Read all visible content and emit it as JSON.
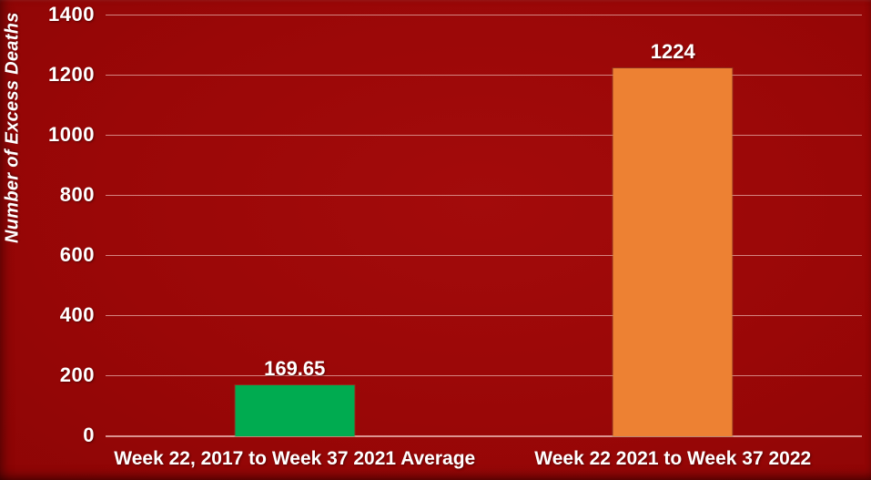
{
  "chart_data": {
    "type": "bar",
    "title": "",
    "ylabel": "Number of Excess Deaths",
    "xlabel": "",
    "categories": [
      "Week 22, 2017 to Week 37 2021 Average",
      "Week 22 2021 to Week 37 2022"
    ],
    "values": [
      169.65,
      1224
    ],
    "value_labels": [
      "169.65",
      "1224"
    ],
    "bar_colors": [
      "#00ab50",
      "#ed8133"
    ],
    "ylim": [
      0,
      1400
    ],
    "yticks": [
      0,
      200,
      400,
      600,
      800,
      1000,
      1200,
      1400
    ],
    "ytick_labels": [
      "0",
      "200",
      "400",
      "600",
      "800",
      "1000",
      "1200",
      "1400"
    ],
    "grid": "horizontal",
    "legend": "none",
    "background_color": "#9a0707",
    "gridline_color": "#e7ada8",
    "text_color": "#ffffff"
  }
}
